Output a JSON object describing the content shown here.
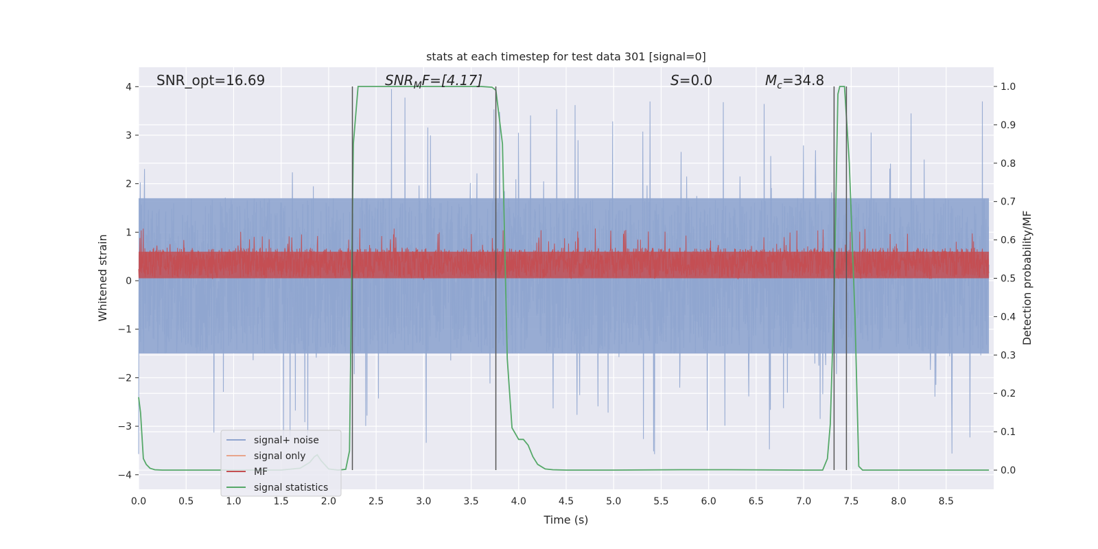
{
  "chart_data": {
    "type": "line",
    "title": "stats at each timestep for test data 301 [signal=0]",
    "xlabel": "Time (s)",
    "ylabel_left": "Whitened strain",
    "ylabel_right": "Detection probability/MF",
    "xlim": [
      0.0,
      9.0
    ],
    "ylim_left": [
      -4.3,
      4.4
    ],
    "ylim_right": [
      -0.05,
      1.05
    ],
    "x_ticks": [
      "0.0",
      "0.5",
      "1.0",
      "1.5",
      "2.0",
      "2.5",
      "3.0",
      "3.5",
      "4.0",
      "4.5",
      "5.0",
      "5.5",
      "6.0",
      "6.5",
      "7.0",
      "7.5",
      "8.0",
      "8.5"
    ],
    "x_tick_values": [
      0.0,
      0.5,
      1.0,
      1.5,
      2.0,
      2.5,
      3.0,
      3.5,
      4.0,
      4.5,
      5.0,
      5.5,
      6.0,
      6.5,
      7.0,
      7.5,
      8.0,
      8.5
    ],
    "left_ticks": [
      "−4",
      "−3",
      "−2",
      "−1",
      "0",
      "1",
      "2",
      "3",
      "4"
    ],
    "left_tick_values": [
      -4,
      -3,
      -2,
      -1,
      0,
      1,
      2,
      3,
      4
    ],
    "right_ticks": [
      "0.0",
      "0.1",
      "0.2",
      "0.3",
      "0.4",
      "0.5",
      "0.6",
      "0.7",
      "0.8",
      "0.9",
      "1.0"
    ],
    "right_tick_values": [
      0.0,
      0.1,
      0.2,
      0.3,
      0.4,
      0.5,
      0.6,
      0.7,
      0.8,
      0.9,
      1.0
    ],
    "annotations": {
      "snr_opt": "SNR_opt=16.69",
      "snr_mf_main": "SNR",
      "snr_mf_sub": "M",
      "snr_mf_rest": "F=[4.17]",
      "s_var": "S",
      "s_rest": "=0.0",
      "mc_var": "M",
      "mc_sub": "c",
      "mc_rest": "=34.8"
    },
    "vertical_lines": [
      2.25,
      3.76,
      7.32,
      7.45
    ],
    "vertical_line_color": "#555555",
    "series": [
      {
        "name": "signal+ noise",
        "color": "#8fa5cf",
        "axis": "left",
        "kind": "noise",
        "core_range": [
          -1.5,
          1.7
        ],
        "spike_range": [
          -3.7,
          4.0
        ]
      },
      {
        "name": "signal only",
        "color": "#e8a48a",
        "axis": "left",
        "kind": "flat",
        "values": []
      },
      {
        "name": "MF",
        "color": "#c44e52",
        "axis": "right",
        "kind": "noise",
        "core_range": [
          0.5,
          0.58
        ],
        "spike_range": [
          0.495,
          0.63
        ]
      },
      {
        "name": "signal statistics",
        "color": "#55a868",
        "axis": "right",
        "kind": "line",
        "x": [
          0.0,
          0.02,
          0.05,
          0.08,
          0.12,
          0.17,
          0.25,
          0.5,
          1.0,
          1.5,
          1.7,
          1.8,
          1.85,
          1.88,
          1.92,
          2.0,
          2.1,
          2.18,
          2.22,
          2.26,
          2.31,
          2.4,
          2.8,
          3.2,
          3.6,
          3.72,
          3.76,
          3.83,
          3.88,
          3.93,
          4.0,
          4.05,
          4.1,
          4.15,
          4.2,
          4.28,
          4.36,
          4.5,
          5.0,
          5.7,
          6.2,
          7.0,
          7.2,
          7.25,
          7.28,
          7.32,
          7.36,
          7.38,
          7.43,
          7.48,
          7.54,
          7.58,
          7.62,
          8.0,
          8.5,
          8.95
        ],
        "y": [
          0.19,
          0.15,
          0.03,
          0.015,
          0.005,
          0.001,
          0.0,
          0.0,
          0.0,
          0.0,
          0.005,
          0.02,
          0.035,
          0.04,
          0.025,
          0.003,
          0.0,
          0.002,
          0.05,
          0.85,
          1.0,
          1.0,
          1.0,
          1.0,
          1.0,
          0.998,
          0.99,
          0.85,
          0.29,
          0.11,
          0.08,
          0.08,
          0.065,
          0.035,
          0.015,
          0.003,
          0.001,
          0.0,
          0.0,
          0.001,
          0.001,
          0.0,
          0.0,
          0.03,
          0.12,
          0.45,
          0.98,
          1.0,
          1.0,
          0.8,
          0.4,
          0.01,
          0.0,
          0.0,
          0.0,
          0.0
        ]
      }
    ],
    "legend_position": "lower-left"
  }
}
